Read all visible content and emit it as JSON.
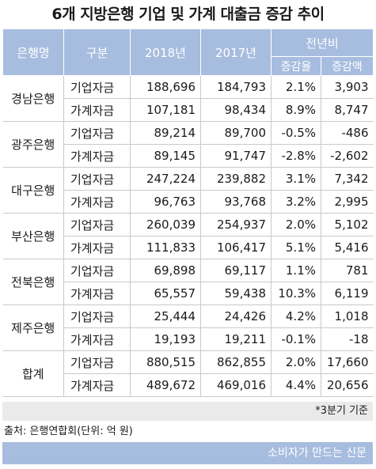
{
  "title": "6개 지방은행 기업 및 가계 대출금 증감 추이",
  "headers": {
    "bank": "은행명",
    "kind": "구분",
    "y2018": "2018년",
    "y2017": "2017년",
    "yoy": "전년비",
    "rate": "증감율",
    "amount": "증감액"
  },
  "rows": [
    {
      "bank": "경남은행",
      "kind": "기업자금",
      "y2018": "188,696",
      "y2017": "184,793",
      "rate": "2.1%",
      "amount": "3,903"
    },
    {
      "bank": "경남은행",
      "kind": "가계자금",
      "y2018": "107,181",
      "y2017": "98,434",
      "rate": "8.9%",
      "amount": "8,747"
    },
    {
      "bank": "광주은행",
      "kind": "기업자금",
      "y2018": "89,214",
      "y2017": "89,700",
      "rate": "-0.5%",
      "amount": "-486"
    },
    {
      "bank": "광주은행",
      "kind": "가계자금",
      "y2018": "89,145",
      "y2017": "91,747",
      "rate": "-2.8%",
      "amount": "-2,602"
    },
    {
      "bank": "대구은행",
      "kind": "기업자금",
      "y2018": "247,224",
      "y2017": "239,882",
      "rate": "3.1%",
      "amount": "7,342"
    },
    {
      "bank": "대구은행",
      "kind": "가계자금",
      "y2018": "96,763",
      "y2017": "93,768",
      "rate": "3.2%",
      "amount": "2,995"
    },
    {
      "bank": "부산은행",
      "kind": "기업자금",
      "y2018": "260,039",
      "y2017": "254,937",
      "rate": "2.0%",
      "amount": "5,102"
    },
    {
      "bank": "부산은행",
      "kind": "가계자금",
      "y2018": "111,833",
      "y2017": "106,417",
      "rate": "5.1%",
      "amount": "5,416"
    },
    {
      "bank": "전북은행",
      "kind": "기업자금",
      "y2018": "69,898",
      "y2017": "69,117",
      "rate": "1.1%",
      "amount": "781"
    },
    {
      "bank": "전북은행",
      "kind": "가계자금",
      "y2018": "65,557",
      "y2017": "59,438",
      "rate": "10.3%",
      "amount": "6,119"
    },
    {
      "bank": "제주은행",
      "kind": "기업자금",
      "y2018": "25,444",
      "y2017": "24,426",
      "rate": "4.2%",
      "amount": "1,018"
    },
    {
      "bank": "제주은행",
      "kind": "가계자금",
      "y2018": "19,193",
      "y2017": "19,211",
      "rate": "-0.1%",
      "amount": "-18"
    },
    {
      "bank": "합계",
      "kind": "기업자금",
      "y2018": "880,515",
      "y2017": "862,855",
      "rate": "2.0%",
      "amount": "17,660"
    },
    {
      "bank": "합계",
      "kind": "가계자금",
      "y2018": "489,672",
      "y2017": "469,016",
      "rate": "4.4%",
      "amount": "20,656"
    }
  ],
  "note": "*3분기 기준",
  "source": "출처: 은행연합회(단위: 억 원)",
  "footer": "소비자가 만드는 신문",
  "colors": {
    "header_bg": "#a7bddf",
    "note_bg": "#eaeaea"
  }
}
